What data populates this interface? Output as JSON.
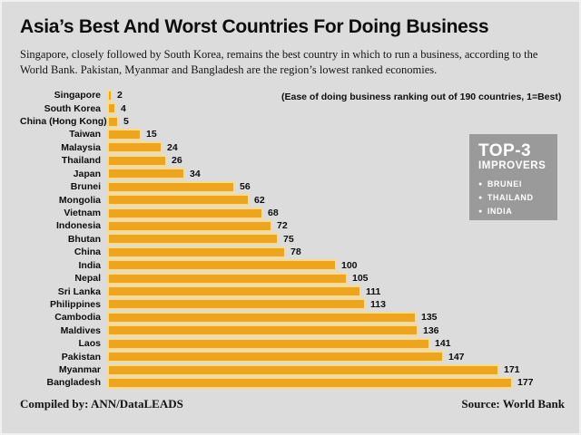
{
  "header": {
    "title": "Asia’s Best And Worst Countries For Doing Business",
    "subtitle": "Singapore, closely followed by South Korea, remains the best country in which to run a business, according to the World Bank. Pakistan, Myanmar and Bangladesh are the region’s lowest ranked economies."
  },
  "chart_data": {
    "type": "bar",
    "orientation": "horizontal",
    "title": "Asia’s Best And Worst Countries For Doing Business",
    "note": "(Ease of doing business ranking out of 190 countries, 1=Best)",
    "categories": [
      "Singapore",
      "South Korea",
      "China (Hong Kong)",
      "Taiwan",
      "Malaysia",
      "Thailand",
      "Japan",
      "Brunei",
      "Mongolia",
      "Vietnam",
      "Indonesia",
      "Bhutan",
      "China",
      "India",
      "Nepal",
      "Sri Lanka",
      "Philippines",
      "Cambodia",
      "Maldives",
      "Laos",
      "Pakistan",
      "Myanmar",
      "Bangladesh"
    ],
    "values": [
      2,
      4,
      5,
      15,
      24,
      26,
      34,
      56,
      62,
      68,
      72,
      75,
      78,
      100,
      105,
      111,
      113,
      135,
      136,
      141,
      147,
      171,
      177
    ],
    "xlim": [
      0,
      190
    ],
    "grid": false,
    "legend": false,
    "value_labels": "end-of-bar"
  },
  "top3": {
    "title": "TOP-3",
    "subtitle": "IMPROVERS",
    "items": [
      "BRUNEI",
      "THAILAND",
      "INDIA"
    ],
    "bullet": "●"
  },
  "footer": {
    "left": "Compiled by: ANN/DataLEADS",
    "right": "Source: World Bank"
  },
  "colors": {
    "background": "#dcdcdc",
    "bar": "#efa41e",
    "bar_edge": "#f8db8c",
    "top3_box": "#9a9a9a",
    "text": "#111111"
  }
}
